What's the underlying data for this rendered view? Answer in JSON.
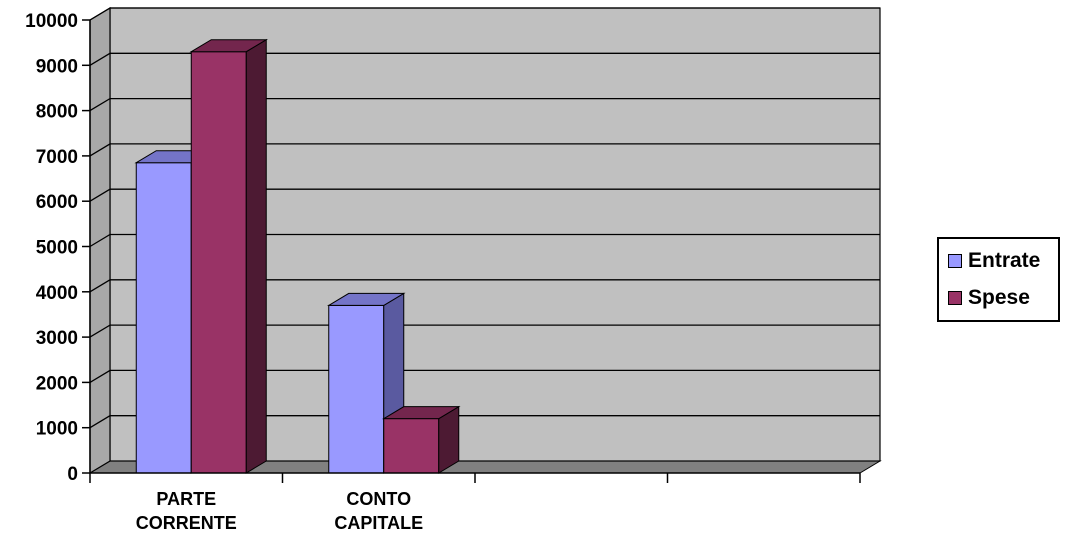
{
  "chart_data": {
    "type": "bar",
    "categories": [
      [
        "PARTE",
        "CORRENTE"
      ],
      [
        "CONTO",
        "CAPITALE"
      ],
      [
        "",
        ""
      ],
      [
        "",
        ""
      ]
    ],
    "series": [
      {
        "name": "Entrate",
        "values": [
          6850,
          3700,
          null,
          null
        ],
        "color": "#9999ff",
        "side_color": "#5a5aa0",
        "top_color": "#7474c8"
      },
      {
        "name": "Spese",
        "values": [
          9300,
          1200,
          null,
          null
        ],
        "color": "#993366",
        "side_color": "#4d1a33",
        "top_color": "#73264d"
      }
    ],
    "ylim": [
      0,
      10000
    ],
    "yticks": [
      "0",
      "1000",
      "2000",
      "3000",
      "4000",
      "5000",
      "6000",
      "7000",
      "8000",
      "9000",
      "10000"
    ],
    "grid": true,
    "legend_position": "right",
    "wall_color": "#c0c0c0",
    "floor_color": "#808080"
  }
}
